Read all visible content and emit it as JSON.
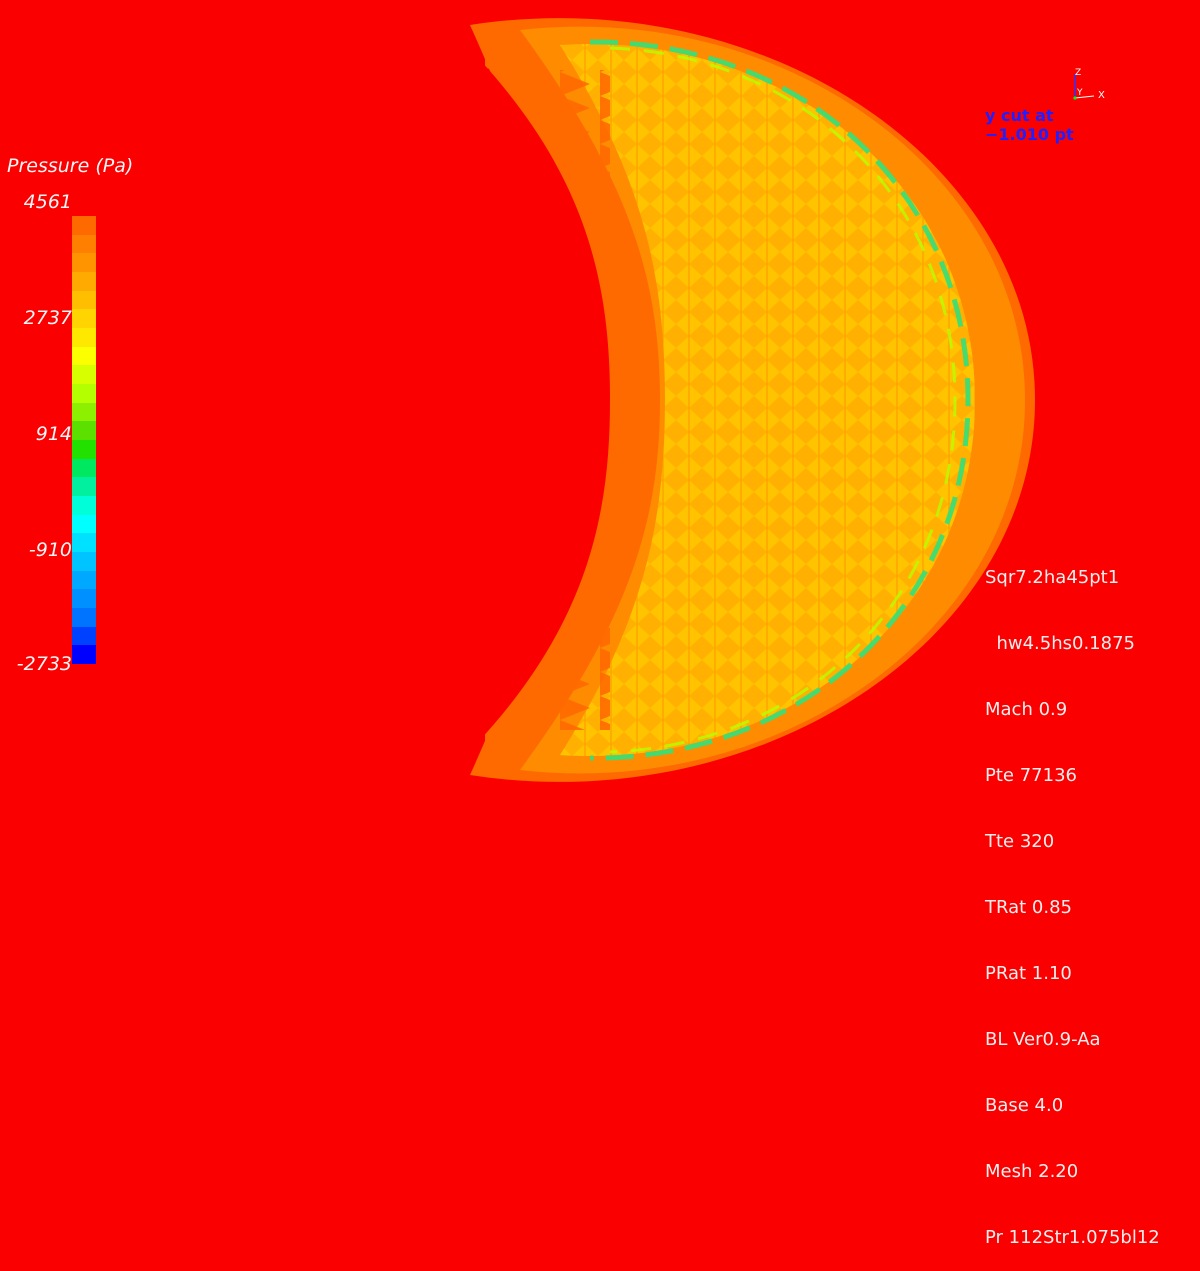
{
  "legend": {
    "title": "Pressure (Pa)",
    "ticks": [
      "4561",
      "2737",
      "914",
      "-910",
      "-2733"
    ],
    "colors": [
      "#ff6a00",
      "#ff7f00",
      "#ff9400",
      "#ffaa00",
      "#ffbe00",
      "#ffd400",
      "#ffe800",
      "#fbff00",
      "#d8ff00",
      "#b4ff00",
      "#8cf000",
      "#5be000",
      "#22e000",
      "#00e860",
      "#00f0a0",
      "#00ffd8",
      "#00ffff",
      "#00e0ff",
      "#00c4ff",
      "#00a8ff",
      "#0090ff",
      "#0074ff",
      "#0040ff",
      "#0000ff"
    ]
  },
  "cut_label": [
    "y cut at",
    "−1.010 pt"
  ],
  "axes_triad": {
    "z": "Z",
    "y": "Y",
    "x": "X"
  },
  "params": [
    "Sqr7.2ha45pt1",
    "  hw4.5hs0.1875",
    "Mach 0.9",
    "Pte 77136",
    "Tte 320",
    "TRat 0.85",
    "PRat 1.10",
    "BL Ver0.9-Aa",
    "Base 4.0",
    "Mesh 2.20",
    "Pr 112Str1.075bl12"
  ],
  "field_colors": {
    "background": "#fb0000",
    "outer": "#ff6a00",
    "mid": "#ff9e00",
    "inner": "#ffd000",
    "edge": "#44ee66"
  }
}
